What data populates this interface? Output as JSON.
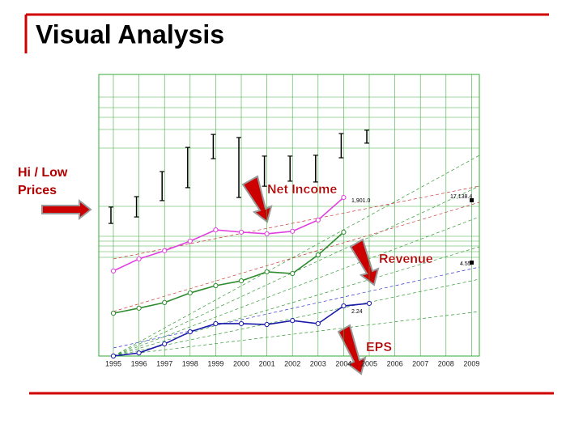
{
  "title": "Visual Analysis",
  "chart_data": {
    "type": "line",
    "categories": [
      "1995",
      "1996",
      "1997",
      "1998",
      "1999",
      "2000",
      "2001",
      "2002",
      "2003",
      "2004",
      "2005",
      "2006",
      "2007",
      "2008",
      "2009"
    ],
    "ylim": [
      0,
      100
    ],
    "series": [
      {
        "name": "Net Income",
        "color": "#e040e0",
        "values": [
          30.2,
          34.5,
          37.4,
          40.8,
          44.8,
          44.0,
          43.4,
          44.3,
          48.3,
          56.3,
          null,
          null,
          null,
          null,
          null
        ]
      },
      {
        "name": "Revenue",
        "color": "#2e8b2e",
        "values": [
          15.2,
          17.0,
          19.0,
          22.4,
          25.0,
          26.7,
          29.9,
          29.3,
          35.9,
          44.0,
          null,
          null,
          null,
          null,
          null
        ]
      },
      {
        "name": "EPS",
        "color": "#1a1aaa",
        "values": [
          0,
          1.1,
          4.3,
          8.6,
          11.5,
          11.5,
          11.2,
          12.6,
          11.5,
          17.8,
          18.7,
          null,
          null,
          null,
          null
        ]
      }
    ],
    "hilo": {
      "name": "Hi / Low Prices",
      "high": [
        52.9,
        56.6,
        65.5,
        74.1,
        78.7,
        77.6,
        71.0,
        71.0,
        71.3,
        79.0,
        80.2,
        null,
        null,
        null,
        null
      ],
      "low": [
        47.1,
        49.4,
        55.2,
        59.8,
        70.1,
        56.3,
        60.3,
        62.1,
        61.8,
        70.4,
        75.6,
        null,
        null,
        null,
        null
      ]
    },
    "value_notes": [
      "1,901.0",
      "2.24",
      "4.55",
      "17,138.4"
    ]
  }
}
